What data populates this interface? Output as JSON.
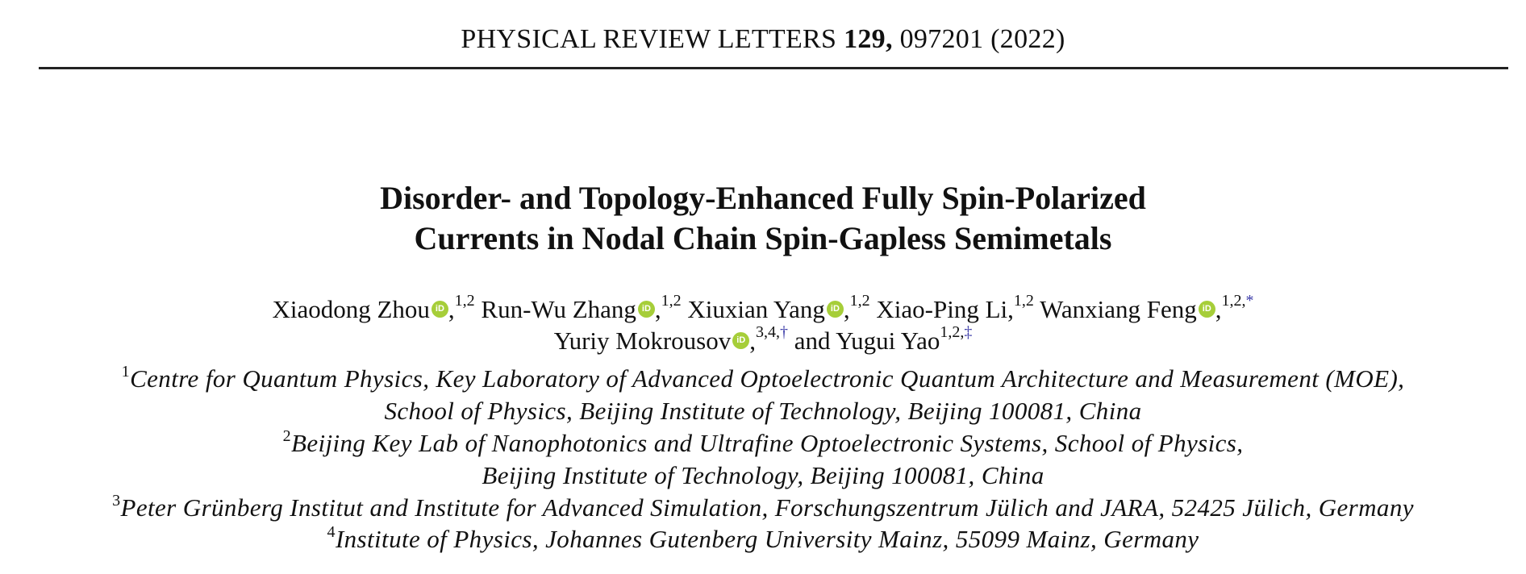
{
  "header": {
    "journal": "PHYSICAL REVIEW LETTERS",
    "volume": "129,",
    "article": "097201 (2022)"
  },
  "title": {
    "line1": "Disorder- and Topology-Enhanced Fully Spin-Polarized",
    "line2": "Currents in Nodal Chain Spin-Gapless Semimetals"
  },
  "orcid_label": "iD",
  "orcid_color": "#a6ce39",
  "authors": [
    {
      "name": "Xiaodong Zhou",
      "aff": "1,2",
      "note": ""
    },
    {
      "name": "Run-Wu Zhang",
      "aff": "1,2",
      "note": ""
    },
    {
      "name": "Xiuxian Yang",
      "aff": "1,2",
      "note": ""
    },
    {
      "name": "Xiao-Ping Li",
      "aff": "1,2",
      "note": ""
    },
    {
      "name": "Wanxiang Feng",
      "aff": "1,2,",
      "note": "*"
    },
    {
      "name": "Yuriy Mokrousov",
      "aff": "3,4,",
      "note": "†"
    },
    {
      "name": "Yugui Yao",
      "aff": "1,2,",
      "note": "‡"
    }
  ],
  "and_word": "and",
  "affiliations": [
    {
      "num": "1",
      "line1": "Centre for Quantum Physics, Key Laboratory of Advanced Optoelectronic Quantum Architecture and Measurement (MOE),",
      "line2": "School of Physics, Beijing Institute of Technology, Beijing 100081, China"
    },
    {
      "num": "2",
      "line1": "Beijing Key Lab of Nanophotonics and Ultrafine Optoelectronic Systems, School of Physics,",
      "line2": "Beijing Institute of Technology, Beijing 100081, China"
    },
    {
      "num": "3",
      "line1": "Peter Grünberg Institut and Institute for Advanced Simulation, Forschungszentrum Jülich and JARA, 52425 Jülich, Germany"
    },
    {
      "num": "4",
      "line1": "Institute of Physics, Johannes Gutenberg University Mainz, 55099 Mainz, Germany"
    }
  ]
}
